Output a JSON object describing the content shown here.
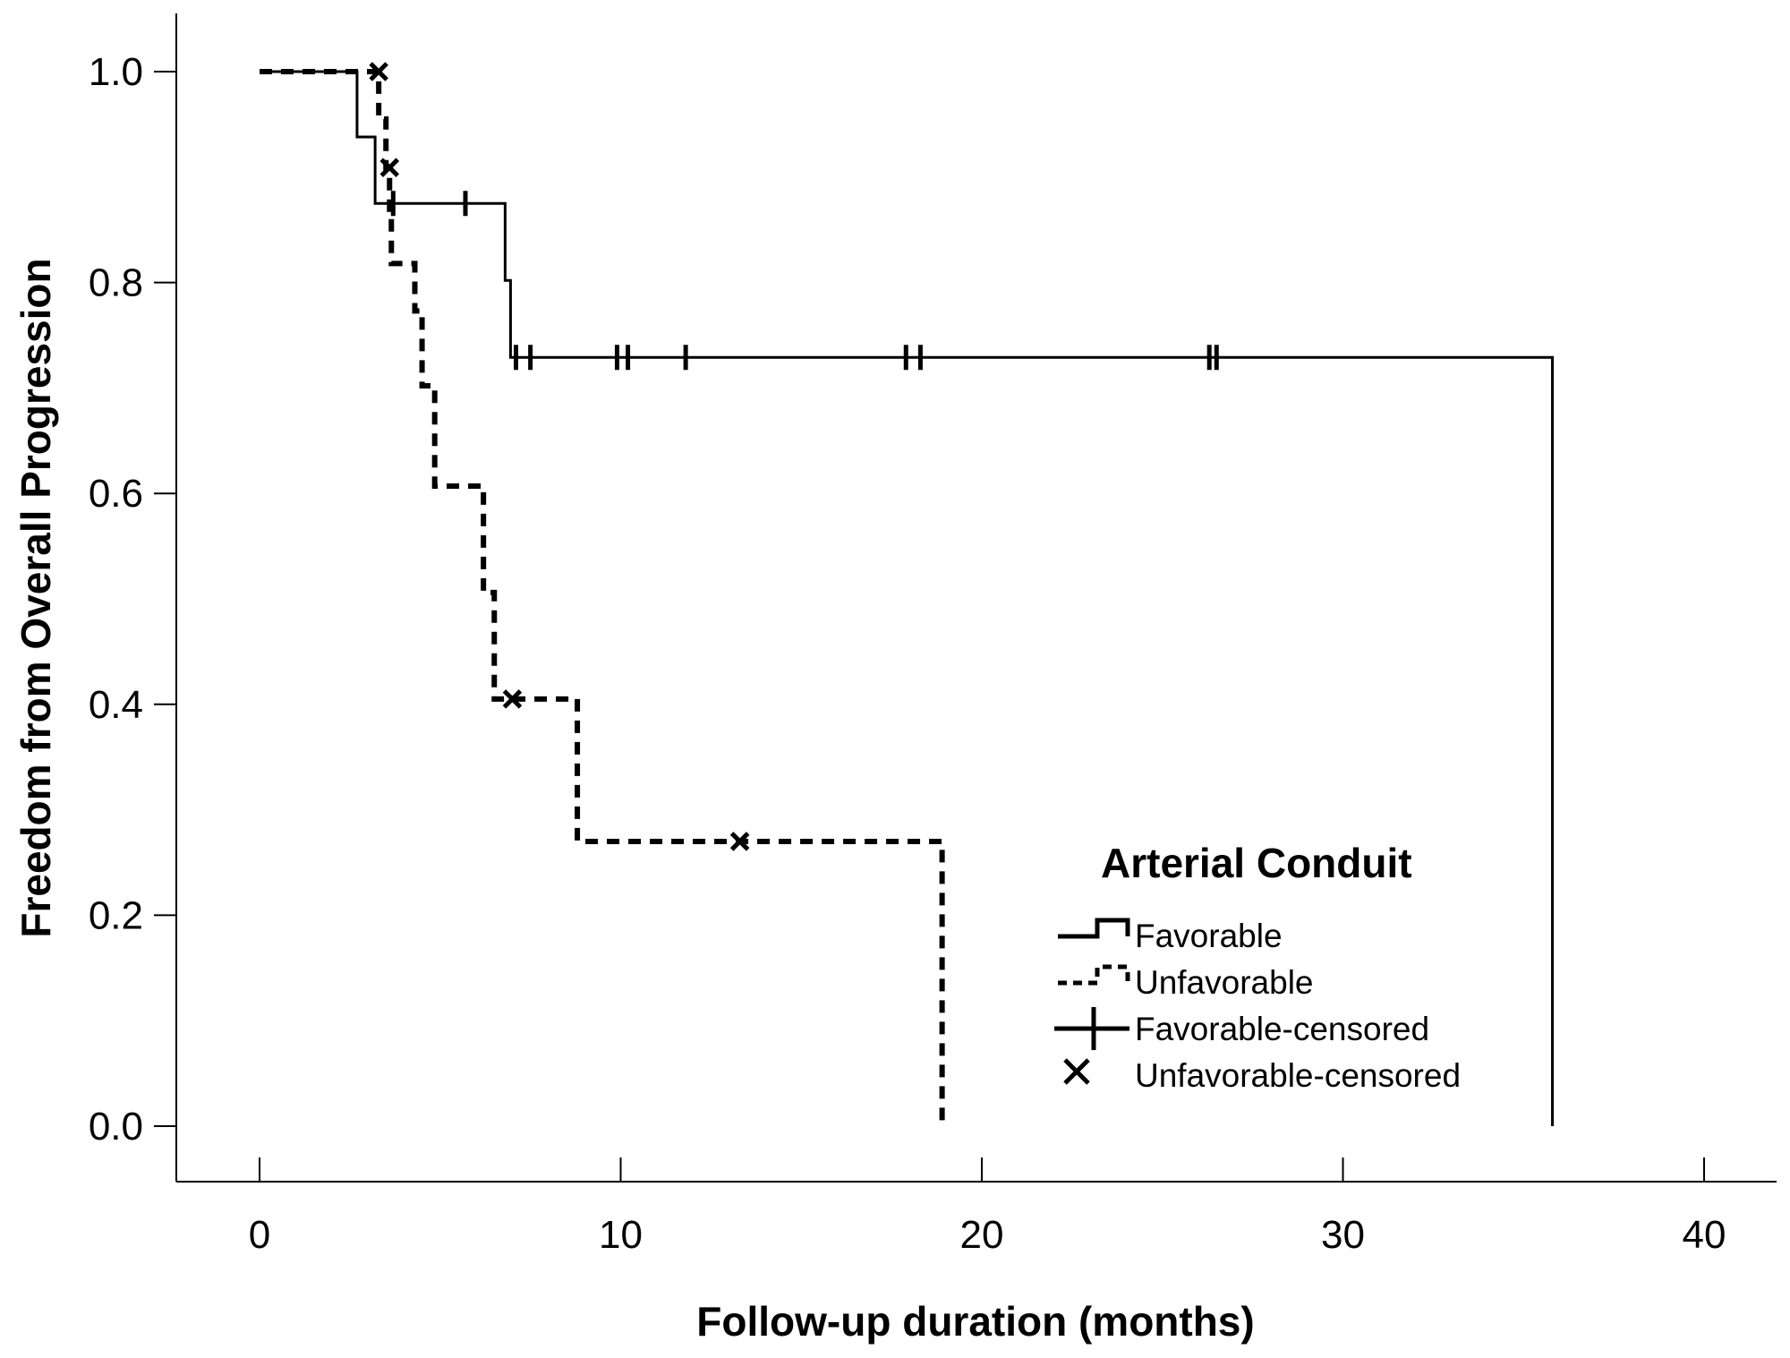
{
  "chart_data": {
    "type": "line",
    "subtype": "kaplan-meier step",
    "xlabel": "Follow-up duration (months)",
    "ylabel": "Freedom from Overall Progression",
    "xlim": [
      0,
      40
    ],
    "ylim": [
      0,
      1
    ],
    "xticks": [
      "0",
      "10",
      "20",
      "30",
      "40"
    ],
    "yticks": [
      "0.0",
      "0.2",
      "0.4",
      "0.6",
      "0.8",
      "1.0"
    ],
    "grid": false,
    "legend": {
      "title": "Arterial Conduit",
      "position": "bottom-right",
      "entries": [
        "Favorable",
        "Unfavorable",
        "Favorable-censored",
        "Unfavorable-censored"
      ]
    },
    "series": [
      {
        "name": "Favorable",
        "style": "solid",
        "steps": [
          [
            0,
            1.0
          ],
          [
            2.7,
            0.938
          ],
          [
            3.2,
            0.875
          ],
          [
            6.8,
            0.802
          ],
          [
            6.95,
            0.729
          ],
          [
            35.8,
            0.0
          ]
        ],
        "end_x": 35.8,
        "censored": [
          [
            3.7,
            0.875
          ],
          [
            5.7,
            0.875
          ],
          [
            7.1,
            0.729
          ],
          [
            7.5,
            0.729
          ],
          [
            9.9,
            0.729
          ],
          [
            10.2,
            0.729
          ],
          [
            11.8,
            0.729
          ],
          [
            17.9,
            0.729
          ],
          [
            18.3,
            0.729
          ],
          [
            26.3,
            0.729
          ],
          [
            26.5,
            0.729
          ]
        ]
      },
      {
        "name": "Unfavorable",
        "style": "dashed",
        "steps": [
          [
            0,
            1.0
          ],
          [
            3.3,
            0.955
          ],
          [
            3.5,
            0.909
          ],
          [
            3.6,
            0.864
          ],
          [
            3.65,
            0.818
          ],
          [
            4.3,
            0.773
          ],
          [
            4.5,
            0.702
          ],
          [
            4.85,
            0.607
          ],
          [
            6.2,
            0.506
          ],
          [
            6.5,
            0.405
          ],
          [
            8.8,
            0.27
          ],
          [
            18.9,
            0.0
          ]
        ],
        "end_x": 18.9,
        "censored": [
          [
            3.3,
            1.0
          ],
          [
            3.6,
            0.909
          ],
          [
            7.0,
            0.405
          ],
          [
            13.3,
            0.27
          ]
        ]
      }
    ]
  }
}
